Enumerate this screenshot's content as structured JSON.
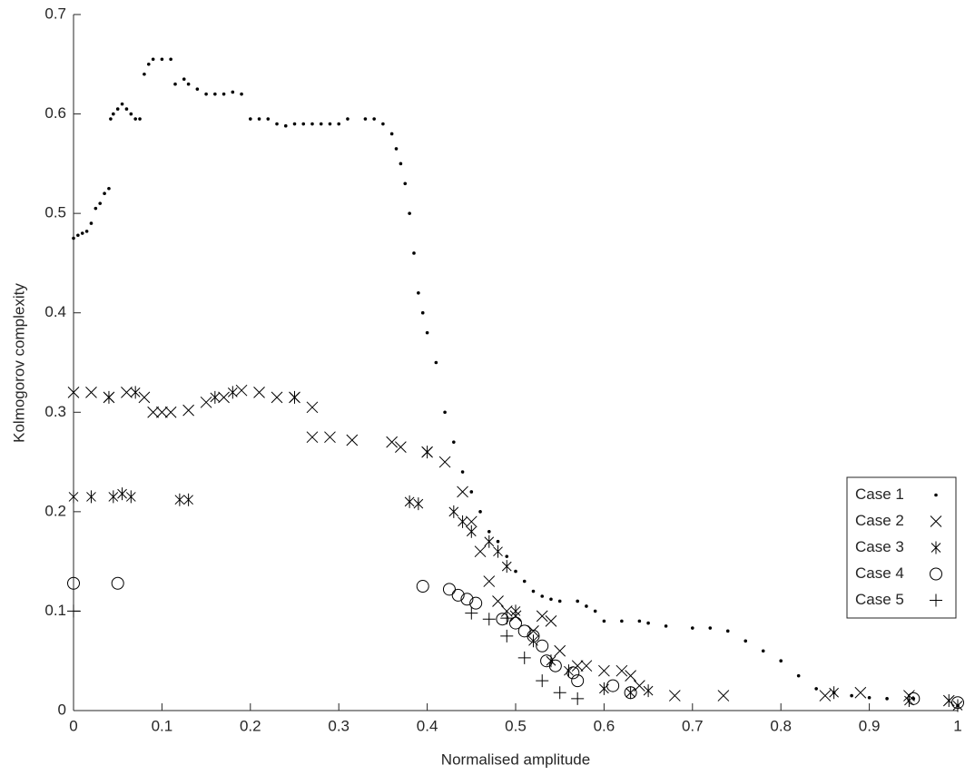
{
  "chart_data": {
    "type": "scatter",
    "x_label": "Normalised amplitude",
    "y_label": "Kolmogorov complexity",
    "xlim": [
      0,
      1
    ],
    "xticks": [
      0,
      0.1,
      0.2,
      0.3,
      0.4,
      0.5,
      0.6,
      0.7,
      0.8,
      0.9,
      1
    ],
    "ylim": [
      0,
      0.7
    ],
    "yticks": [
      0,
      0.1,
      0.2,
      0.3,
      0.4,
      0.5,
      0.6,
      0.7
    ],
    "grid": false,
    "legend": "lower right",
    "series": [
      {
        "name": "Case 1",
        "color": "#000000",
        "marker": "dot",
        "x": [
          0,
          0.005,
          0.01,
          0.015,
          0.02,
          0.025,
          0.03,
          0.035,
          0.04,
          0.042,
          0.045,
          0.05,
          0.055,
          0.06,
          0.065,
          0.07,
          0.075,
          0.08,
          0.085,
          0.09,
          0.1,
          0.11,
          0.115,
          0.125,
          0.13,
          0.14,
          0.15,
          0.16,
          0.17,
          0.18,
          0.19,
          0.2,
          0.21,
          0.22,
          0.23,
          0.24,
          0.25,
          0.26,
          0.27,
          0.28,
          0.29,
          0.3,
          0.31,
          0.33,
          0.34,
          0.35,
          0.36,
          0.365,
          0.37,
          0.375,
          0.38,
          0.385,
          0.39,
          0.395,
          0.4,
          0.41,
          0.42,
          0.43,
          0.44,
          0.45,
          0.46,
          0.47,
          0.48,
          0.49,
          0.5,
          0.51,
          0.52,
          0.53,
          0.54,
          0.55,
          0.57,
          0.58,
          0.59,
          0.6,
          0.62,
          0.64,
          0.65,
          0.67,
          0.7,
          0.72,
          0.74,
          0.76,
          0.78,
          0.8,
          0.82,
          0.84,
          0.86,
          0.88,
          0.9,
          0.92,
          0.95,
          1
        ],
        "values": [
          0.475,
          0.478,
          0.48,
          0.482,
          0.49,
          0.505,
          0.51,
          0.52,
          0.525,
          0.595,
          0.6,
          0.605,
          0.61,
          0.605,
          0.6,
          0.595,
          0.595,
          0.64,
          0.65,
          0.655,
          0.655,
          0.655,
          0.63,
          0.635,
          0.63,
          0.625,
          0.62,
          0.62,
          0.62,
          0.622,
          0.62,
          0.595,
          0.595,
          0.595,
          0.59,
          0.588,
          0.59,
          0.59,
          0.59,
          0.59,
          0.59,
          0.59,
          0.595,
          0.595,
          0.595,
          0.59,
          0.58,
          0.565,
          0.55,
          0.53,
          0.5,
          0.46,
          0.42,
          0.4,
          0.38,
          0.35,
          0.3,
          0.27,
          0.24,
          0.22,
          0.2,
          0.18,
          0.17,
          0.155,
          0.14,
          0.13,
          0.12,
          0.115,
          0.112,
          0.11,
          0.11,
          0.105,
          0.1,
          0.09,
          0.09,
          0.09,
          0.088,
          0.085,
          0.083,
          0.083,
          0.08,
          0.07,
          0.06,
          0.05,
          0.035,
          0.022,
          0.018,
          0.015,
          0.013,
          0.012,
          0.012,
          0.005
        ]
      },
      {
        "name": "Case 2",
        "color": "#000000",
        "marker": "x",
        "x": [
          0,
          0.02,
          0.04,
          0.06,
          0.08,
          0.09,
          0.1,
          0.11,
          0.13,
          0.15,
          0.17,
          0.19,
          0.21,
          0.23,
          0.25,
          0.27,
          0.27,
          0.29,
          0.315,
          0.36,
          0.37,
          0.4,
          0.42,
          0.44,
          0.45,
          0.46,
          0.47,
          0.48,
          0.49,
          0.5,
          0.52,
          0.53,
          0.54,
          0.55,
          0.57,
          0.58,
          0.6,
          0.62,
          0.63,
          0.64,
          0.68,
          0.735,
          0.85,
          0.89,
          0.945,
          0.99
        ],
        "values": [
          0.32,
          0.32,
          0.315,
          0.32,
          0.315,
          0.3,
          0.3,
          0.3,
          0.302,
          0.31,
          0.315,
          0.322,
          0.32,
          0.315,
          0.315,
          0.305,
          0.275,
          0.275,
          0.272,
          0.27,
          0.265,
          0.26,
          0.25,
          0.22,
          0.19,
          0.16,
          0.13,
          0.11,
          0.1,
          0.095,
          0.08,
          0.095,
          0.09,
          0.06,
          0.045,
          0.045,
          0.04,
          0.04,
          0.035,
          0.025,
          0.015,
          0.015,
          0.015,
          0.018,
          0.015,
          0.01
        ]
      },
      {
        "name": "Case 3",
        "color": "#000000",
        "marker": "star",
        "x": [
          0,
          0.02,
          0.045,
          0.055,
          0.065,
          0.12,
          0.13,
          0.04,
          0.07,
          0.16,
          0.18,
          0.25,
          0.38,
          0.39,
          0.4,
          0.43,
          0.44,
          0.45,
          0.47,
          0.48,
          0.49,
          0.5,
          0.52,
          0.54,
          0.56,
          0.6,
          0.63,
          0.65,
          0.86,
          0.945,
          0.99,
          1
        ],
        "values": [
          0.215,
          0.215,
          0.215,
          0.218,
          0.215,
          0.212,
          0.212,
          0.315,
          0.32,
          0.315,
          0.32,
          0.315,
          0.21,
          0.208,
          0.26,
          0.2,
          0.19,
          0.18,
          0.17,
          0.16,
          0.145,
          0.1,
          0.07,
          0.05,
          0.04,
          0.022,
          0.018,
          0.02,
          0.018,
          0.01,
          0.01,
          0.005
        ]
      },
      {
        "name": "Case 4",
        "color": "#000000",
        "marker": "circle",
        "x": [
          0,
          0.05,
          0.395,
          0.425,
          0.435,
          0.445,
          0.455,
          0.485,
          0.5,
          0.51,
          0.52,
          0.53,
          0.535,
          0.545,
          0.565,
          0.57,
          0.61,
          0.63,
          0.95,
          1
        ],
        "values": [
          0.128,
          0.128,
          0.125,
          0.122,
          0.116,
          0.112,
          0.108,
          0.092,
          0.088,
          0.08,
          0.075,
          0.065,
          0.05,
          0.045,
          0.038,
          0.03,
          0.025,
          0.018,
          0.012,
          0.008
        ]
      },
      {
        "name": "Case 5",
        "color": "#000000",
        "marker": "plus",
        "x": [
          0,
          0.45,
          0.47,
          0.49,
          0.49,
          0.51,
          0.53,
          0.55,
          0.57
        ],
        "values": [
          0.1,
          0.098,
          0.092,
          0.093,
          0.075,
          0.053,
          0.03,
          0.018,
          0.012
        ]
      }
    ]
  }
}
